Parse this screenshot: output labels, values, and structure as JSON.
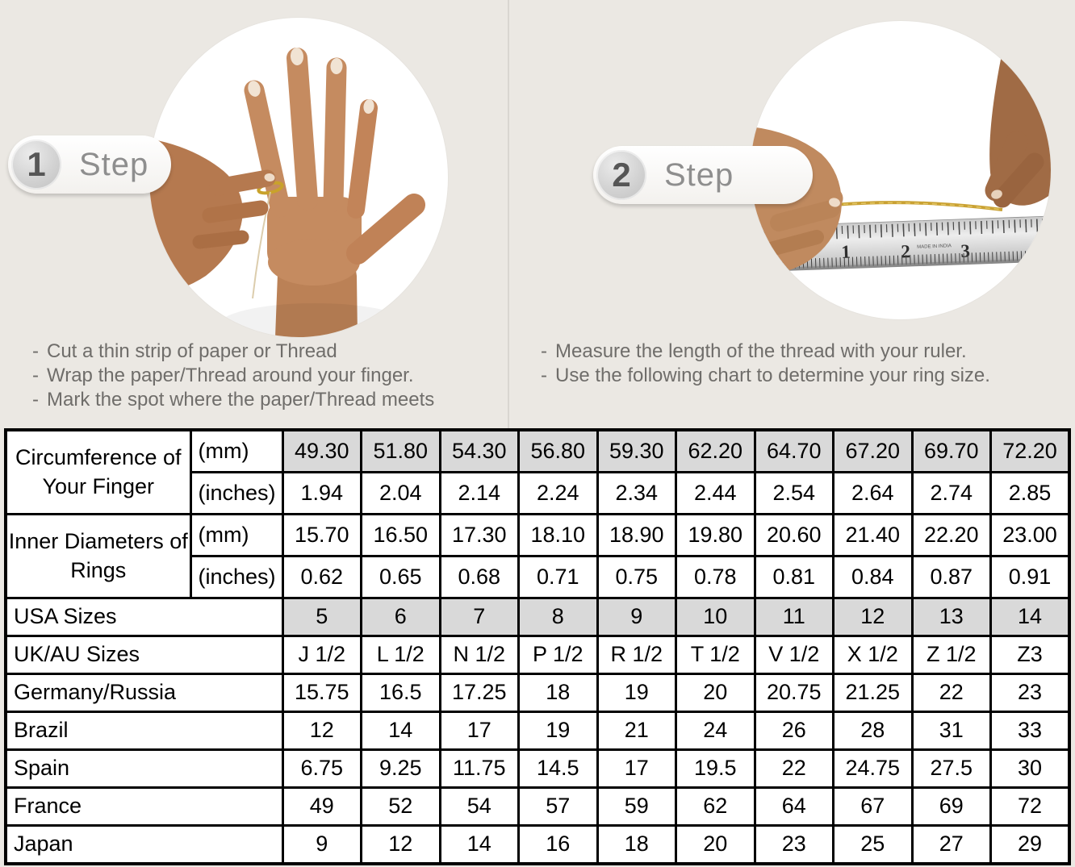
{
  "colors": {
    "page_bg": "#ebe8e3",
    "shaded_cell": "#d9d9d9",
    "table_border": "#000000",
    "instruction_text": "#6f6d6a",
    "step_label_gray": "#8e8e8e",
    "step_number_gray": "#565656",
    "thread_gold": "#c9a133",
    "ring_gold": "#c9a22b"
  },
  "steps": [
    {
      "number": "1",
      "label": "Step",
      "bullets": [
        "Cut a thin strip of paper or Thread",
        "Wrap the paper/Thread around your finger.",
        "Mark the spot where the paper/Thread meets"
      ]
    },
    {
      "number": "2",
      "label": "Step",
      "bullets": [
        "Measure the length of the thread with your ruler.",
        "Use the following chart to determine your ring size."
      ]
    }
  ],
  "step2_photo": {
    "ruler_numbers": [
      "1",
      "2",
      "3"
    ],
    "ruler_brand": "MADE IN INDIA"
  },
  "table": {
    "measure_groups": [
      {
        "label": "Circumference of Your Finger",
        "rows": [
          {
            "unit": "(mm)",
            "shaded": true,
            "values": [
              "49.30",
              "51.80",
              "54.30",
              "56.80",
              "59.30",
              "62.20",
              "64.70",
              "67.20",
              "69.70",
              "72.20"
            ]
          },
          {
            "unit": "(inches)",
            "shaded": false,
            "values": [
              "1.94",
              "2.04",
              "2.14",
              "2.24",
              "2.34",
              "2.44",
              "2.54",
              "2.64",
              "2.74",
              "2.85"
            ]
          }
        ]
      },
      {
        "label": "Inner Diameters of Rings",
        "rows": [
          {
            "unit": "(mm)",
            "shaded": false,
            "values": [
              "15.70",
              "16.50",
              "17.30",
              "18.10",
              "18.90",
              "19.80",
              "20.60",
              "21.40",
              "22.20",
              "23.00"
            ]
          },
          {
            "unit": "(inches)",
            "shaded": false,
            "values": [
              "0.62",
              "0.65",
              "0.68",
              "0.71",
              "0.75",
              "0.78",
              "0.81",
              "0.84",
              "0.87",
              "0.91"
            ]
          }
        ]
      }
    ],
    "size_rows": [
      {
        "label": "USA Sizes",
        "shaded": true,
        "values": [
          "5",
          "6",
          "7",
          "8",
          "9",
          "10",
          "11",
          "12",
          "13",
          "14"
        ]
      },
      {
        "label": "UK/AU Sizes",
        "shaded": false,
        "values": [
          "J 1/2",
          "L 1/2",
          "N 1/2",
          "P 1/2",
          "R 1/2",
          "T 1/2",
          "V 1/2",
          "X 1/2",
          "Z 1/2",
          "Z3"
        ]
      },
      {
        "label": "Germany/Russia",
        "shaded": false,
        "values": [
          "15.75",
          "16.5",
          "17.25",
          "18",
          "19",
          "20",
          "20.75",
          "21.25",
          "22",
          "23"
        ]
      },
      {
        "label": "Brazil",
        "shaded": false,
        "values": [
          "12",
          "14",
          "17",
          "19",
          "21",
          "24",
          "26",
          "28",
          "31",
          "33"
        ]
      },
      {
        "label": "Spain",
        "shaded": false,
        "values": [
          "6.75",
          "9.25",
          "11.75",
          "14.5",
          "17",
          "19.5",
          "22",
          "24.75",
          "27.5",
          "30"
        ]
      },
      {
        "label": "France",
        "shaded": false,
        "values": [
          "49",
          "52",
          "54",
          "57",
          "59",
          "62",
          "64",
          "67",
          "69",
          "72"
        ]
      },
      {
        "label": "Japan",
        "shaded": false,
        "values": [
          "9",
          "12",
          "14",
          "16",
          "18",
          "20",
          "23",
          "25",
          "27",
          "29"
        ]
      }
    ]
  }
}
